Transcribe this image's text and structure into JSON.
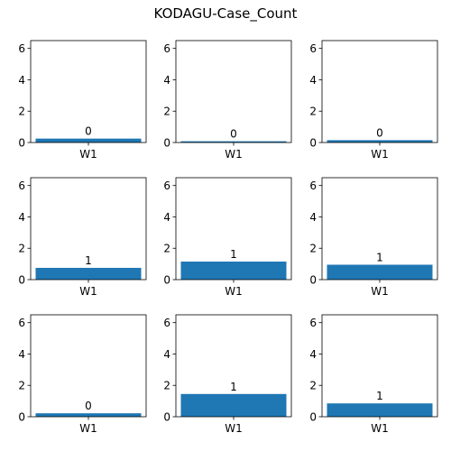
{
  "title": "KODAGU-Case_Count",
  "bar_color": "#1f77b4",
  "chart_data": [
    {
      "type": "bar",
      "categories": [
        "W1"
      ],
      "values": [
        0.25
      ],
      "data_labels": [
        "0"
      ],
      "ylim": [
        0,
        6.5
      ],
      "yticks": [
        "0",
        "2",
        "4",
        "6"
      ]
    },
    {
      "type": "bar",
      "categories": [
        "W1"
      ],
      "values": [
        0.08
      ],
      "data_labels": [
        "0"
      ],
      "ylim": [
        0,
        6.5
      ],
      "yticks": [
        "0",
        "2",
        "4",
        "6"
      ]
    },
    {
      "type": "bar",
      "categories": [
        "W1"
      ],
      "values": [
        0.15
      ],
      "data_labels": [
        "0"
      ],
      "ylim": [
        0,
        6.5
      ],
      "yticks": [
        "0",
        "2",
        "4",
        "6"
      ]
    },
    {
      "type": "bar",
      "categories": [
        "W1"
      ],
      "values": [
        0.75
      ],
      "data_labels": [
        "1"
      ],
      "ylim": [
        0,
        6.5
      ],
      "yticks": [
        "0",
        "2",
        "4",
        "6"
      ]
    },
    {
      "type": "bar",
      "categories": [
        "W1"
      ],
      "values": [
        1.15
      ],
      "data_labels": [
        "1"
      ],
      "ylim": [
        0,
        6.5
      ],
      "yticks": [
        "0",
        "2",
        "4",
        "6"
      ]
    },
    {
      "type": "bar",
      "categories": [
        "W1"
      ],
      "values": [
        0.95
      ],
      "data_labels": [
        "1"
      ],
      "ylim": [
        0,
        6.5
      ],
      "yticks": [
        "0",
        "2",
        "4",
        "6"
      ]
    },
    {
      "type": "bar",
      "categories": [
        "W1"
      ],
      "values": [
        0.22
      ],
      "data_labels": [
        "0"
      ],
      "ylim": [
        0,
        6.5
      ],
      "yticks": [
        "0",
        "2",
        "4",
        "6"
      ]
    },
    {
      "type": "bar",
      "categories": [
        "W1"
      ],
      "values": [
        1.45
      ],
      "data_labels": [
        "1"
      ],
      "ylim": [
        0,
        6.5
      ],
      "yticks": [
        "0",
        "2",
        "4",
        "6"
      ]
    },
    {
      "type": "bar",
      "categories": [
        "W1"
      ],
      "values": [
        0.85
      ],
      "data_labels": [
        "1"
      ],
      "ylim": [
        0,
        6.5
      ],
      "yticks": [
        "0",
        "2",
        "4",
        "6"
      ]
    }
  ]
}
